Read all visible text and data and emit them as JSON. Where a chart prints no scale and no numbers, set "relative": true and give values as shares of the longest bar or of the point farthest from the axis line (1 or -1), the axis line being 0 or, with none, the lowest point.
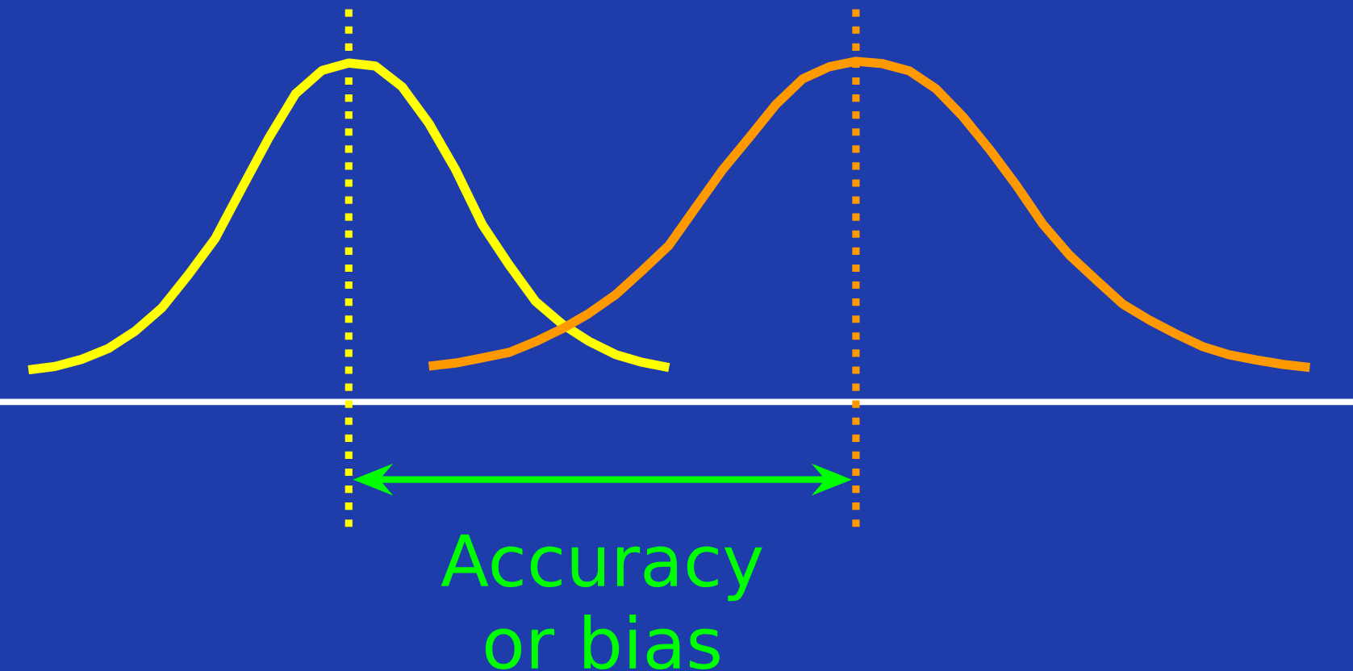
{
  "chart_data": {
    "type": "line",
    "relative": true,
    "marker": "none",
    "line_style": "solid",
    "categories": [
      null,
      null,
      null,
      null,
      null,
      null,
      null,
      null,
      null,
      null,
      null,
      null,
      null,
      null,
      null,
      null,
      null,
      null,
      null,
      null,
      null,
      null,
      null,
      null,
      null,
      null,
      null,
      null,
      null,
      null,
      null,
      null,
      null,
      null,
      null,
      null,
      null,
      null,
      null,
      null,
      null,
      null,
      null,
      null,
      null,
      null,
      null,
      null,
      null
    ],
    "series": [
      {
        "color": "#ffff00",
        "values": [
          0.094,
          0.104,
          0.125,
          0.157,
          0.208,
          0.276,
          0.374,
          0.48,
          0.628,
          0.774,
          0.904,
          0.973,
          0.995,
          0.986,
          0.925,
          0.818,
          0.682,
          0.521,
          0.403,
          0.295,
          0.228,
          0.178,
          0.139,
          0.116,
          0.101,
          null,
          null,
          null,
          null,
          null,
          null,
          null,
          null,
          null,
          null,
          null,
          null,
          null,
          null,
          null,
          null,
          null,
          null,
          null,
          null,
          null,
          null,
          null,
          null
        ]
      },
      {
        "color": "#ff9900",
        "values": [
          null,
          null,
          null,
          null,
          null,
          null,
          null,
          null,
          null,
          null,
          null,
          null,
          null,
          null,
          null,
          0.105,
          0.114,
          0.129,
          0.145,
          0.177,
          0.215,
          0.26,
          0.315,
          0.386,
          0.46,
          0.571,
          0.681,
          0.776,
          0.873,
          0.948,
          0.984,
          1,
          0.993,
          0.972,
          0.919,
          0.838,
          0.742,
          0.637,
          0.522,
          0.431,
          0.358,
          0.287,
          0.24,
          0.199,
          0.162,
          0.138,
          0.123,
          0.11,
          0.101
        ]
      }
    ],
    "annotations": [
      "Accuracy or bias"
    ]
  }
}
